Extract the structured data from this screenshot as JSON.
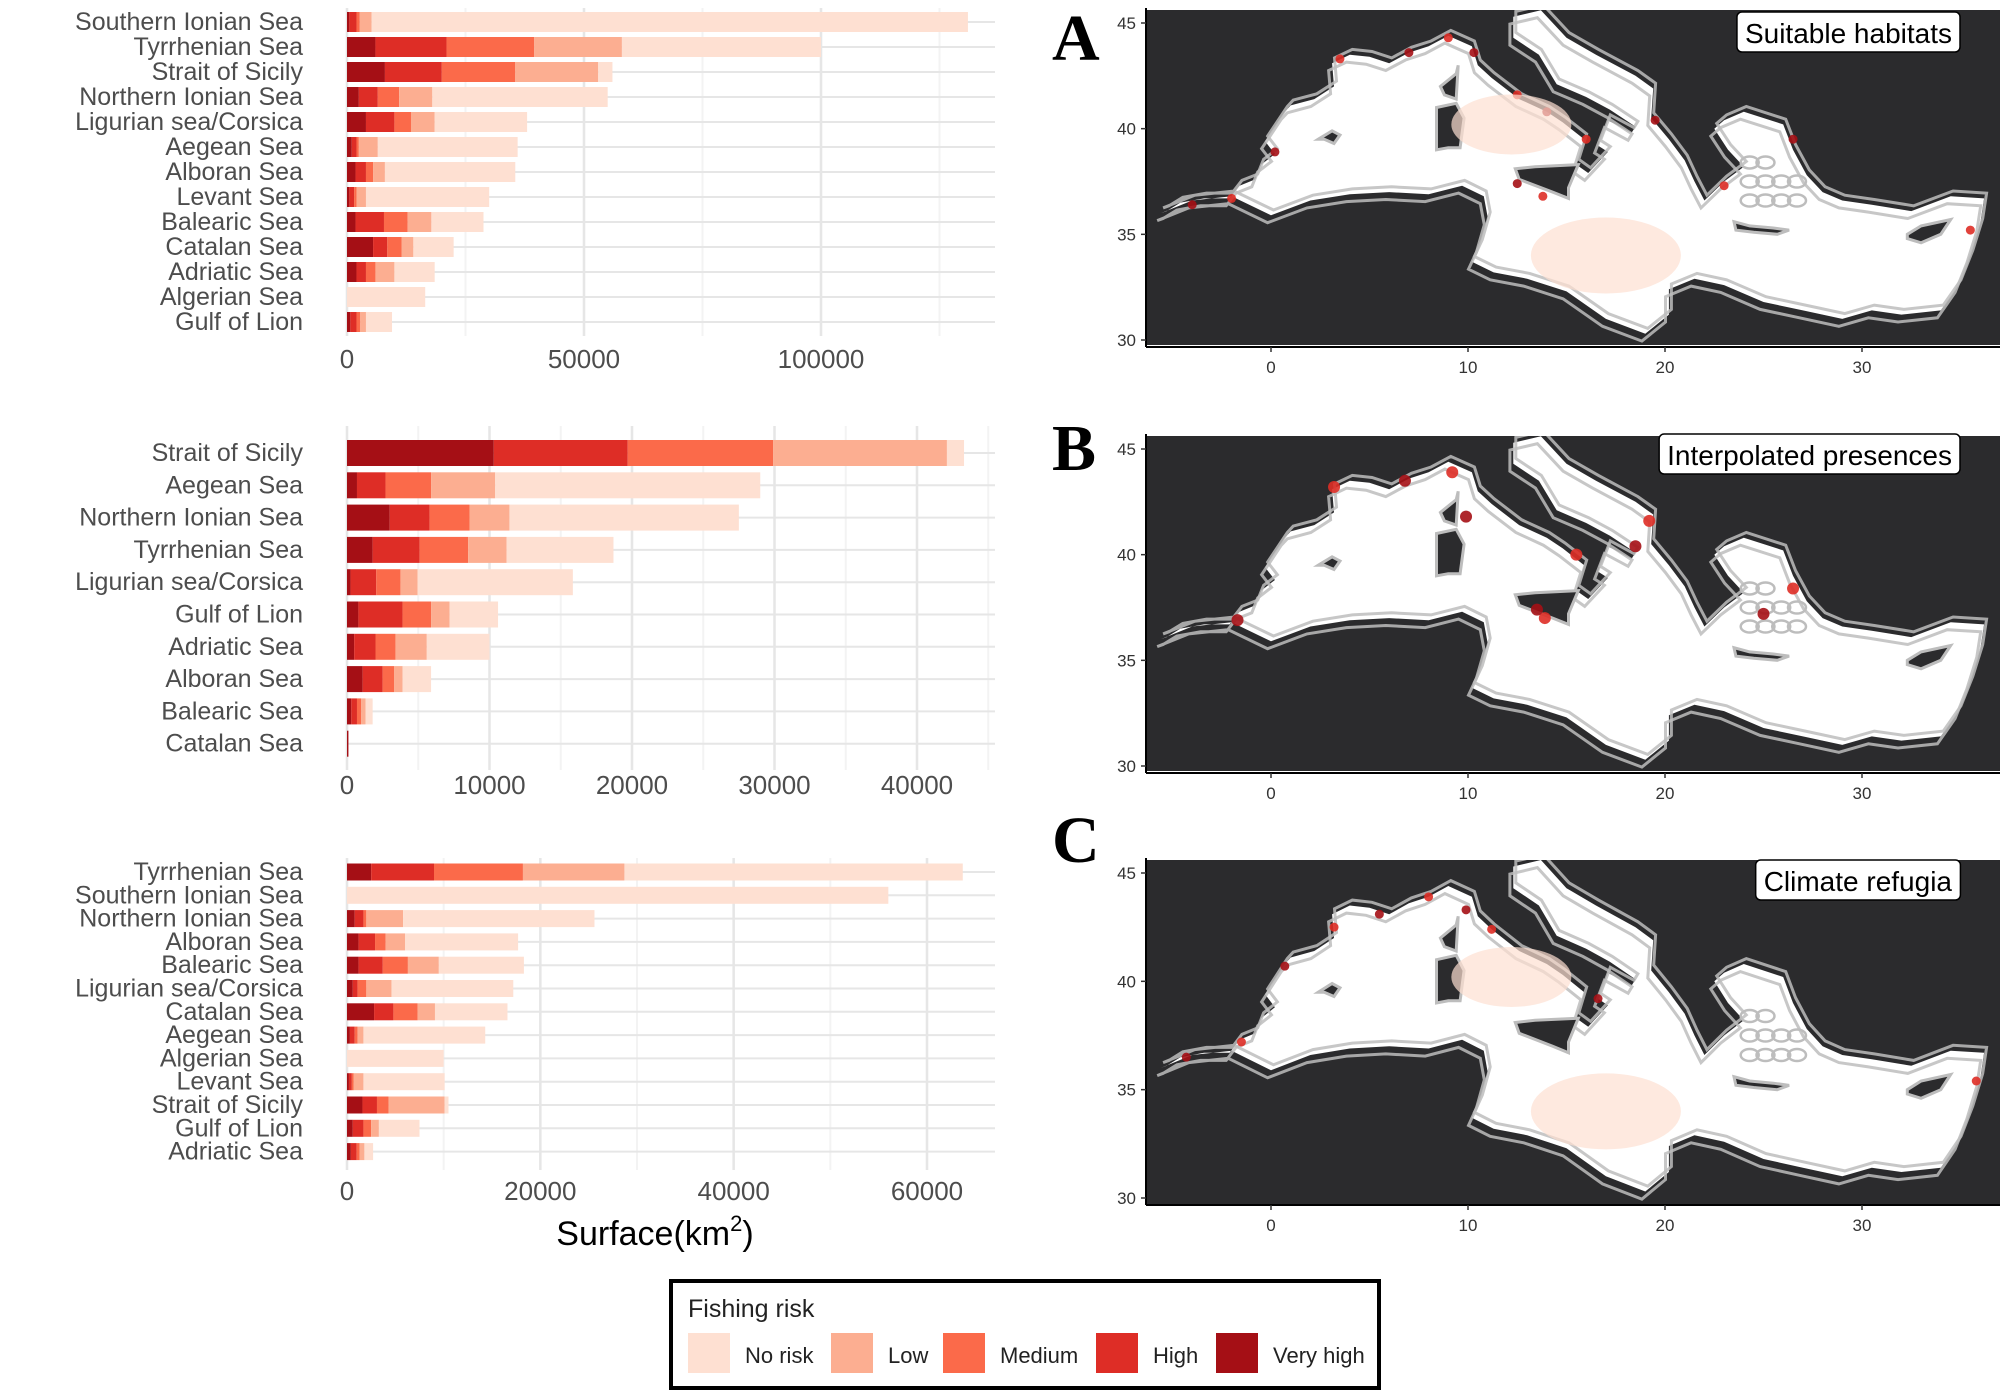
{
  "chart_data": [
    {
      "type": "bar",
      "orientation": "horizontal",
      "stacked": true,
      "categories": [
        "Southern Ionian Sea",
        "Tyrrhenian Sea",
        "Strait of Sicily",
        "Northern Ionian Sea",
        "Ligurian sea/Corsica",
        "Aegean Sea",
        "Alboran Sea",
        "Levant Sea",
        "Balearic Sea",
        "Catalan Sea",
        "Adriatic Sea",
        "Algerian Sea",
        "Gulf of Lion"
      ],
      "series": [
        {
          "name": "Very high",
          "values": [
            500,
            6000,
            8000,
            2500,
            4000,
            1000,
            1800,
            500,
            1800,
            5500,
            2000,
            0,
            700
          ]
        },
        {
          "name": "High",
          "values": [
            1500,
            15000,
            12000,
            4000,
            6000,
            1000,
            2200,
            1000,
            6000,
            3000,
            2000,
            0,
            1300
          ]
        },
        {
          "name": "Medium",
          "values": [
            700,
            18500,
            15500,
            4500,
            3500,
            500,
            1500,
            500,
            5000,
            3000,
            2000,
            0,
            800
          ]
        },
        {
          "name": "Low",
          "values": [
            2500,
            18500,
            17500,
            7000,
            5000,
            4000,
            2500,
            2000,
            5000,
            2500,
            4000,
            0,
            1200
          ]
        },
        {
          "name": "No risk",
          "values": [
            125800,
            42000,
            3000,
            37000,
            19500,
            29500,
            27500,
            26000,
            11000,
            8500,
            8500,
            16500,
            5500
          ]
        }
      ],
      "xlim": [
        0,
        135000
      ],
      "xticks": [
        "0",
        "50000",
        "100000"
      ],
      "xtick_values": [
        0,
        50000,
        100000
      ],
      "grid": true
    },
    {
      "type": "bar",
      "orientation": "horizontal",
      "stacked": true,
      "categories": [
        "Strait of Sicily",
        "Aegean Sea",
        "Northern Ionian Sea",
        "Tyrrhenian Sea",
        "Ligurian sea/Corsica",
        "Gulf of Lion",
        "Adriatic Sea",
        "Alboran Sea",
        "Balearic Sea",
        "Catalan Sea"
      ],
      "series": [
        {
          "name": "Very high",
          "values": [
            10300,
            700,
            3000,
            1800,
            250,
            800,
            500,
            1100,
            300,
            100
          ]
        },
        {
          "name": "High",
          "values": [
            9400,
            2000,
            2800,
            3300,
            1800,
            3100,
            1500,
            1400,
            400,
            0
          ]
        },
        {
          "name": "Medium",
          "values": [
            10200,
            3200,
            2800,
            3400,
            1700,
            2000,
            1400,
            800,
            300,
            0
          ]
        },
        {
          "name": "Low",
          "values": [
            12200,
            4500,
            2800,
            2700,
            1200,
            1300,
            2200,
            600,
            300,
            0
          ]
        },
        {
          "name": "No risk",
          "values": [
            1200,
            18600,
            16100,
            7500,
            10900,
            3400,
            4400,
            2000,
            500,
            0
          ]
        }
      ],
      "xlim": [
        0,
        44500
      ],
      "xticks": [
        "0",
        "10000",
        "20000",
        "30000",
        "40000"
      ],
      "xtick_values": [
        0,
        10000,
        20000,
        30000,
        40000
      ],
      "grid": true
    },
    {
      "type": "bar",
      "orientation": "horizontal",
      "stacked": true,
      "categories": [
        "Tyrrhenian Sea",
        "Southern Ionian Sea",
        "Northern Ionian Sea",
        "Alboran Sea",
        "Balearic Sea",
        "Ligurian sea/Corsica",
        "Catalan Sea",
        "Aegean Sea",
        "Algerian Sea",
        "Levant Sea",
        "Strait of Sicily",
        "Gulf of Lion",
        "Adriatic Sea"
      ],
      "series": [
        {
          "name": "Very high",
          "values": [
            2500,
            0,
            800,
            1200,
            1200,
            600,
            2800,
            300,
            0,
            200,
            1600,
            600,
            400
          ]
        },
        {
          "name": "High",
          "values": [
            6500,
            0,
            900,
            1700,
            2500,
            500,
            2000,
            500,
            0,
            300,
            1500,
            1100,
            600
          ]
        },
        {
          "name": "Medium",
          "values": [
            9200,
            0,
            300,
            1100,
            2600,
            900,
            2500,
            300,
            0,
            200,
            1200,
            800,
            300
          ]
        },
        {
          "name": "Low",
          "values": [
            10500,
            0,
            3800,
            2000,
            3200,
            2600,
            1800,
            600,
            0,
            1000,
            5800,
            800,
            500
          ]
        },
        {
          "name": "No risk",
          "values": [
            35000,
            56000,
            19800,
            11700,
            8800,
            12600,
            7500,
            12600,
            10000,
            8400,
            400,
            4200,
            900
          ]
        }
      ],
      "xlim": [
        0,
        67000
      ],
      "xticks": [
        "0",
        "20000",
        "40000",
        "60000"
      ],
      "xtick_values": [
        0,
        20000,
        40000,
        60000
      ],
      "grid": true
    }
  ],
  "xlabel": {
    "main": "Surface(km",
    "sup": "2",
    "close": ")"
  },
  "legend": {
    "title": "Fishing risk",
    "items": [
      {
        "label": "No risk",
        "color": "#fee0d2"
      },
      {
        "label": "Low",
        "color": "#fcae91"
      },
      {
        "label": "Medium",
        "color": "#fb6a4a"
      },
      {
        "label": "High",
        "color": "#de2d26"
      },
      {
        "label": "Very high",
        "color": "#a50f15"
      }
    ]
  },
  "maps": [
    {
      "letter": "A",
      "title": "Suitable habitats"
    },
    {
      "letter": "B",
      "title": "Interpolated presences"
    },
    {
      "letter": "C",
      "title": "Climate refugia"
    }
  ],
  "map_axes": {
    "xticks": [
      "0",
      "10",
      "20",
      "30"
    ],
    "yticks": [
      "45",
      "40",
      "35",
      "30"
    ]
  },
  "colors": {
    "land": "#2b2b2d",
    "sea": "#ffffff",
    "contour": "#bdbdbd",
    "grid": "#ebebeb"
  }
}
